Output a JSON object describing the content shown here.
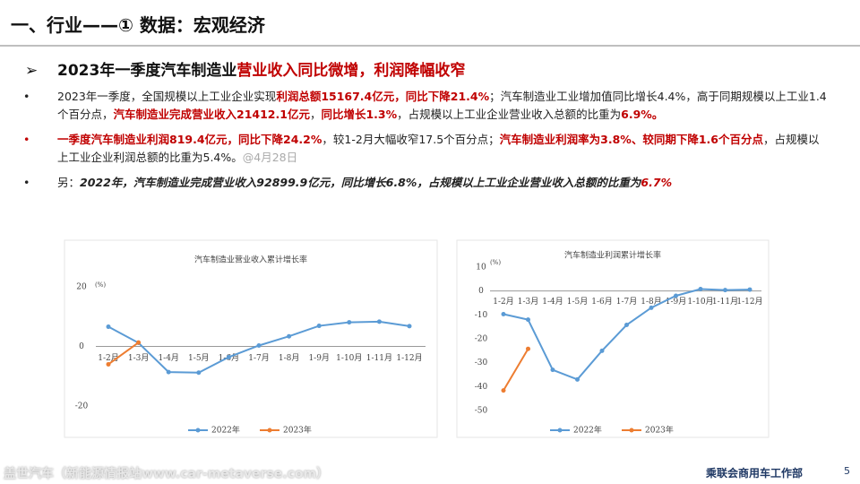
{
  "header": {
    "title": "一、行业——① 数据：宏观经济"
  },
  "subheading": [
    [
      "2023年一季度汽车制造业",
      "bold"
    ],
    [
      "营业收入同比微增，利润降幅收窄",
      "red"
    ]
  ],
  "bullets": [
    {
      "marker": "normal",
      "runs": [
        [
          "2023年一季度，全国规模以上工业企业实现",
          "plain"
        ],
        [
          "利润总额15167.4亿元，同比下降21.4%",
          "red"
        ],
        [
          "；汽车制造业工业增加值同比增长4.4%，高于同期规模以上工业1.4个百分点，",
          "plain"
        ],
        [
          "汽车制造业完成营业收入21412.1亿元",
          "red"
        ],
        [
          "，",
          "plain"
        ],
        [
          "同比增长1.3%",
          "red"
        ],
        [
          "，占规模以上工业企业营业收入总额的比重为",
          "plain"
        ],
        [
          "6.9%。",
          "red"
        ]
      ]
    },
    {
      "marker": "red",
      "runs": [
        [
          "一季度汽车制造业利润819.4亿元，同比下降24.2%",
          "red"
        ],
        [
          "，较1-2月大幅收窄17.5个百分点；",
          "plain"
        ],
        [
          "汽车制造业利润率为3.8%、较同期下降1.6个百分点",
          "red"
        ],
        [
          "，占规模以上工业企业利润总额的比重为5.4%。",
          "plain"
        ],
        [
          "@4月28日",
          "gray"
        ]
      ]
    },
    {
      "marker": "normal",
      "runs": [
        [
          "另：",
          "plain"
        ],
        [
          "2022年，汽车制造业完成营业收入92899.9亿元，同比增长6.8%，占规模以上工业企业营业收入总额的比重为",
          "bold-italic"
        ],
        [
          "6.7%",
          "red-italic"
        ]
      ]
    }
  ],
  "chart_data": [
    {
      "type": "line",
      "title": "汽车制造业营业收入累计增长率",
      "y_label": "(%)",
      "categories": [
        "1-2月",
        "1-3月",
        "1-4月",
        "1-5月",
        "1-6月",
        "1-7月",
        "1-8月",
        "1-9月",
        "1-10月",
        "1-11月",
        "1-12月"
      ],
      "series": [
        {
          "name": "2022年",
          "color": "#5b9bd5",
          "values": [
            6.6,
            1.2,
            -8.6,
            -8.8,
            -3.6,
            0.3,
            3.4,
            6.9,
            8.1,
            8.3,
            6.8
          ]
        },
        {
          "name": "2023年",
          "color": "#ed7d31",
          "values": [
            -6.0,
            1.3,
            null,
            null,
            null,
            null,
            null,
            null,
            null,
            null,
            null
          ]
        }
      ],
      "ylim": [
        -20,
        20
      ],
      "yticks": [
        -20,
        0,
        20
      ],
      "legend": "bottom"
    },
    {
      "type": "line",
      "title": "汽车制造业利润累计增长率",
      "y_label": "(%)",
      "categories": [
        "1-2月",
        "1-3月",
        "1-4月",
        "1-5月",
        "1-6月",
        "1-7月",
        "1-8月",
        "1-9月",
        "1-10月",
        "1-11月",
        "1-12月"
      ],
      "series": [
        {
          "name": "2022年",
          "color": "#5b9bd5",
          "values": [
            -9.7,
            -12.0,
            -33.0,
            -37.0,
            -25.0,
            -14.2,
            -7.0,
            -2.0,
            0.8,
            0.4,
            0.6
          ]
        },
        {
          "name": "2023年",
          "color": "#ed7d31",
          "values": [
            -41.6,
            -24.2,
            null,
            null,
            null,
            null,
            null,
            null,
            null,
            null,
            null
          ]
        }
      ],
      "ylim": [
        -50,
        10
      ],
      "yticks": [
        -50,
        -40,
        -30,
        -20,
        -10,
        0,
        10
      ],
      "legend": "bottom"
    }
  ],
  "footer": {
    "watermark": "盖世汽车（新能源情报站www.car-metaverse.com）",
    "org": "乘联会商用车工作部",
    "page": "5"
  }
}
